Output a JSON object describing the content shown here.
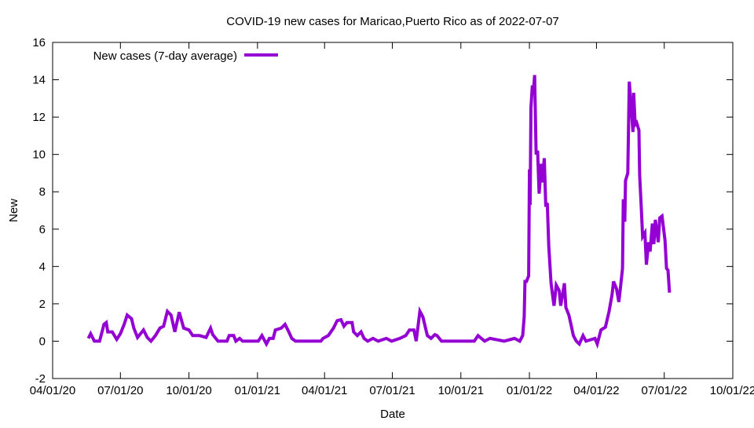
{
  "chart_data": {
    "type": "line",
    "title": "COVID-19 new cases for Maricao,Puerto Rico as of 2022-07-07",
    "xlabel": "Date",
    "ylabel": "New",
    "ylim": [
      -2,
      16
    ],
    "yticks": [
      -2,
      0,
      2,
      4,
      6,
      8,
      10,
      12,
      14,
      16
    ],
    "xlim": [
      0,
      913
    ],
    "xticks": [
      {
        "x": 0,
        "label": "04/01/20"
      },
      {
        "x": 91,
        "label": "07/01/20"
      },
      {
        "x": 183,
        "label": "10/01/20"
      },
      {
        "x": 275,
        "label": "01/01/21"
      },
      {
        "x": 365,
        "label": "04/01/21"
      },
      {
        "x": 456,
        "label": "07/01/21"
      },
      {
        "x": 548,
        "label": "10/01/21"
      },
      {
        "x": 640,
        "label": "01/01/22"
      },
      {
        "x": 730,
        "label": "04/01/22"
      },
      {
        "x": 821,
        "label": "07/01/22"
      },
      {
        "x": 913,
        "label": "10/01/22"
      }
    ],
    "x_unit": "days since 04/01/20",
    "grid": false,
    "legend_position": "top-left",
    "series": [
      {
        "name": "New cases (7-day average)",
        "color": "#9400d3",
        "x": [
          48,
          51,
          56,
          63,
          69,
          72,
          74,
          80,
          86,
          91,
          96,
          100,
          106,
          109,
          114,
          122,
          127,
          132,
          138,
          144,
          149,
          154,
          159,
          164,
          170,
          176,
          183,
          188,
          197,
          206,
          212,
          215,
          222,
          234,
          237,
          243,
          246,
          251,
          255,
          276,
          281,
          287,
          291,
          296,
          299,
          307,
          312,
          317,
          321,
          326,
          360,
          363,
          370,
          377,
          382,
          387,
          391,
          395,
          402,
          404,
          409,
          414,
          418,
          423,
          430,
          437,
          448,
          455,
          466,
          474,
          479,
          485,
          488,
          493,
          497,
          503,
          508,
          513,
          516,
          522,
          543,
          566,
          571,
          580,
          587,
          606,
          620,
          627,
          631,
          633,
          634,
          636,
          639,
          640,
          641,
          642,
          644,
          645,
          647,
          649,
          651,
          653,
          656,
          657,
          660,
          662,
          664,
          666,
          669,
          672,
          673,
          676,
          680,
          682,
          685,
          687,
          689,
          693,
          696,
          699,
          703,
          707,
          712,
          716,
          728,
          731,
          736,
          742,
          747,
          751,
          753,
          757,
          760,
          762,
          765,
          766,
          768,
          769,
          772,
          774,
          779,
          780,
          782,
          784,
          787,
          788,
          790,
          792,
          795,
          797,
          800,
          802,
          805,
          807,
          809,
          813,
          815,
          818,
          822,
          824,
          826,
          828
        ],
        "values": [
          0.15,
          0.4,
          0,
          0,
          0.9,
          1.0,
          0.5,
          0.5,
          0.1,
          0.4,
          0.9,
          1.4,
          1.2,
          0.7,
          0.2,
          0.6,
          0.2,
          0,
          0.3,
          0.7,
          0.8,
          1.6,
          1.4,
          0.5,
          1.55,
          0.7,
          0.6,
          0.3,
          0.3,
          0.2,
          0.7,
          0.35,
          0,
          0,
          0.3,
          0.3,
          0,
          0.15,
          0,
          0,
          0.3,
          -0.15,
          0.15,
          0.15,
          0.6,
          0.7,
          0.9,
          0.5,
          0.15,
          0,
          0,
          0.15,
          0.3,
          0.7,
          1.1,
          1.15,
          0.8,
          1.0,
          1.0,
          0.5,
          0.3,
          0.5,
          0.15,
          0,
          0.15,
          0,
          0.15,
          0,
          0.15,
          0.3,
          0.6,
          0.6,
          0,
          1.6,
          1.3,
          0.3,
          0.15,
          0.35,
          0.3,
          0,
          0,
          0,
          0.3,
          0,
          0.15,
          0,
          0.15,
          0,
          0.3,
          1.3,
          3.2,
          3.2,
          3.5,
          9.2,
          7.3,
          12.5,
          13.7,
          13.2,
          14.25,
          10.0,
          10.2,
          7.9,
          9.5,
          8.5,
          9.8,
          7.2,
          7.4,
          5.1,
          3.1,
          2.2,
          1.9,
          3.0,
          2.7,
          1.9,
          2.6,
          3.1,
          1.8,
          1.4,
          0.85,
          0.3,
          0,
          -0.15,
          0.3,
          0,
          0.15,
          -0.15,
          0.6,
          0.75,
          1.6,
          2.5,
          3.2,
          2.8,
          2.1,
          2.8,
          3.9,
          7.6,
          6.4,
          8.6,
          9.0,
          13.9,
          11.2,
          13.3,
          11.6,
          11.7,
          11.3,
          8.9,
          7.3,
          5.6,
          5.8,
          4.1,
          5.3,
          4.8,
          6.3,
          5.2,
          6.5,
          5.3,
          6.6,
          6.7,
          5.4,
          3.9,
          3.8,
          2.6
        ]
      }
    ]
  }
}
